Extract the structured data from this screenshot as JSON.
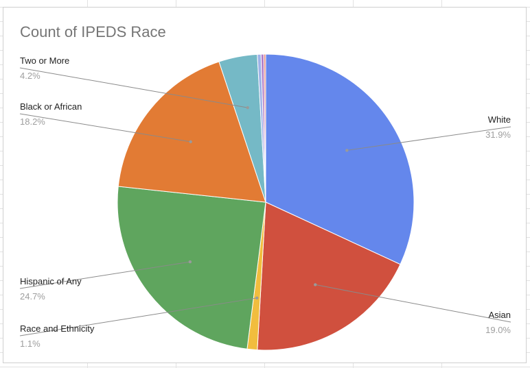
{
  "chart_data": {
    "type": "pie",
    "title": "Count of IPEDS Race",
    "slices": [
      {
        "label": "White",
        "value": 31.9,
        "display": "31.9%",
        "color": "#6487ec"
      },
      {
        "label": "Asian",
        "value": 19.0,
        "display": "19.0%",
        "color": "#d0503e"
      },
      {
        "label": "Race and Ethnicity",
        "value": 1.1,
        "display": "1.1%",
        "color": "#f1bd3e"
      },
      {
        "label": "Hispanic of Any",
        "value": 24.7,
        "display": "24.7%",
        "color": "#5fa55e"
      },
      {
        "label": "Black or African",
        "value": 18.2,
        "display": "18.2%",
        "color": "#e27b34"
      },
      {
        "label": "Two or More",
        "value": 4.2,
        "display": "4.2%",
        "color": "#75b9c6"
      },
      {
        "label": "",
        "value": 0.4,
        "display": "",
        "color": "#9fb3e8"
      },
      {
        "label": "",
        "value": 0.3,
        "display": "",
        "color": "#b07cc6"
      },
      {
        "label": "",
        "value": 0.2,
        "display": "",
        "color": "#e88a7c"
      }
    ]
  }
}
